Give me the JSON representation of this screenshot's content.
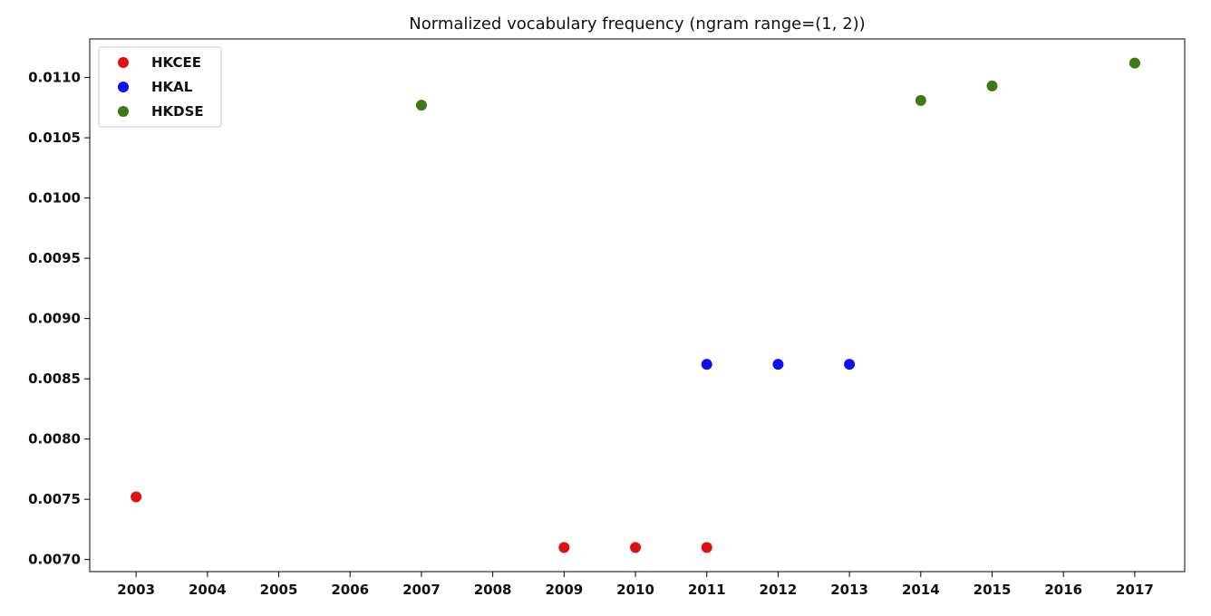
{
  "chart_data": {
    "type": "scatter",
    "title": "Normalized vocabulary frequency (ngram range=(1, 2))",
    "xlabel": "",
    "ylabel": "",
    "x_ticks": [
      2003,
      2004,
      2005,
      2006,
      2007,
      2008,
      2009,
      2010,
      2011,
      2012,
      2013,
      2014,
      2015,
      2016,
      2017
    ],
    "y_ticks": [
      0.007,
      0.0075,
      0.008,
      0.0085,
      0.009,
      0.0095,
      0.01,
      0.0105,
      0.011
    ],
    "y_tick_labels": [
      "0.0070",
      "0.0075",
      "0.0080",
      "0.0085",
      "0.0090",
      "0.0095",
      "0.0100",
      "0.0105",
      "0.0110"
    ],
    "xlim": [
      2002.35,
      2017.7
    ],
    "ylim": [
      0.0069,
      0.01132
    ],
    "grid": false,
    "legend_position": "top-left",
    "series": [
      {
        "name": "HKCEE",
        "color": "#e01010",
        "points": [
          {
            "x": 2003,
            "y": 0.00752
          },
          {
            "x": 2009,
            "y": 0.0071
          },
          {
            "x": 2010,
            "y": 0.0071
          },
          {
            "x": 2011,
            "y": 0.0071
          }
        ]
      },
      {
        "name": "HKAL",
        "color": "#1010f0",
        "points": [
          {
            "x": 2011,
            "y": 0.00862
          },
          {
            "x": 2012,
            "y": 0.00862
          },
          {
            "x": 2013,
            "y": 0.00862
          }
        ]
      },
      {
        "name": "HKDSE",
        "color": "#3d7a15",
        "points": [
          {
            "x": 2007,
            "y": 0.01077
          },
          {
            "x": 2014,
            "y": 0.01081
          },
          {
            "x": 2015,
            "y": 0.01093
          },
          {
            "x": 2017,
            "y": 0.01112
          }
        ]
      }
    ]
  }
}
